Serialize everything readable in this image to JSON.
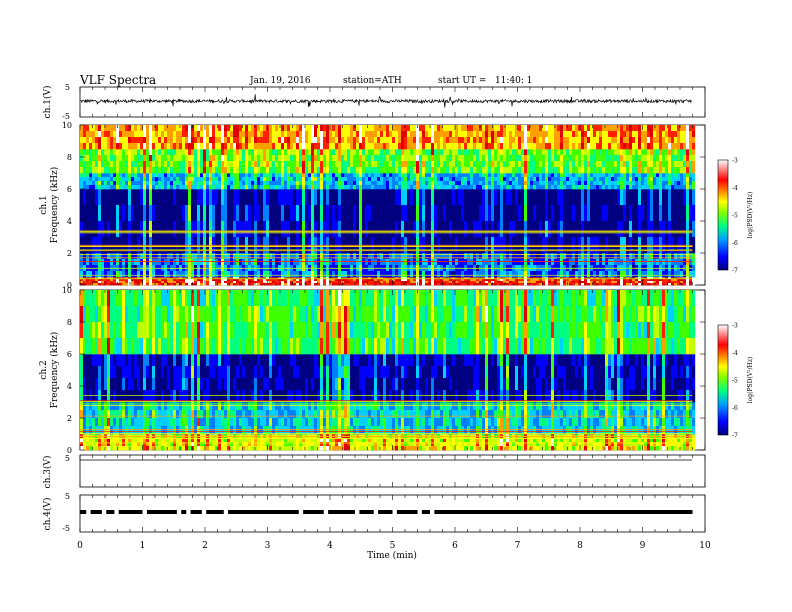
{
  "header": {
    "title": "VLF Spectra",
    "date": "Jan. 19, 2016",
    "station": "station=ATH",
    "start": "start UT =   11:40: 1"
  },
  "chart_data": [
    {
      "type": "line",
      "name": "ch1-waveform",
      "ylabel": "ch.1(V)",
      "ylim": [
        -5,
        5
      ],
      "yticks": [
        "5",
        "-5"
      ],
      "baseline": 0.3,
      "noise_amplitude": 0.5,
      "spikes": "frequent, up to ±2 V"
    },
    {
      "type": "heatmap",
      "name": "ch1-spectrogram",
      "ylabel": "ch.1\nFrequency (kHz)",
      "ylim": [
        0,
        10
      ],
      "yticks": [
        "0",
        "2",
        "4",
        "6",
        "8",
        "10"
      ],
      "xlim": [
        0,
        9.8
      ],
      "bands_khz": [
        {
          "from": 0,
          "to": 0.5,
          "log_psd": -3.5
        },
        {
          "from": 0.5,
          "to": 2,
          "log_psd": -6.2
        },
        {
          "from": 2,
          "to": 6,
          "log_psd": -6.9
        },
        {
          "from": 6,
          "to": 7,
          "log_psd": -5.9
        },
        {
          "from": 7,
          "to": 8.5,
          "log_psd": -5.0
        },
        {
          "from": 8.5,
          "to": 10,
          "log_psd": -4.0
        }
      ],
      "colorbar": {
        "label": "log(PSD(V²/Hz)",
        "range": [
          -7,
          -3
        ],
        "ticks": [
          "-3",
          "-4",
          "-5",
          "-6",
          "-7"
        ]
      }
    },
    {
      "type": "heatmap",
      "name": "ch2-spectrogram",
      "ylabel": "ch.2\nFrequency (kHz)",
      "ylim": [
        0,
        10
      ],
      "yticks": [
        "0",
        "2",
        "4",
        "6",
        "8",
        "10"
      ],
      "xlim": [
        0,
        9.8
      ],
      "bands_khz": [
        {
          "from": 0,
          "to": 1,
          "log_psd": -4.5
        },
        {
          "from": 1,
          "to": 3,
          "log_psd": -5.8
        },
        {
          "from": 3,
          "to": 6,
          "log_psd": -6.8
        },
        {
          "from": 6,
          "to": 10,
          "log_psd": -5.2
        }
      ],
      "colorbar": {
        "label": "log(PSD(V²/Hz)",
        "range": [
          -7,
          -3
        ],
        "ticks": [
          "-3",
          "-4",
          "-5",
          "-6",
          "-7"
        ]
      }
    },
    {
      "type": "line",
      "name": "ch3-waveform",
      "ylabel": "ch.3(V)",
      "ylim": [
        -5,
        5
      ],
      "yticks": [
        "5"
      ],
      "values": "flat at 5 V"
    },
    {
      "type": "line",
      "name": "ch4-waveform",
      "ylabel": "ch.4(V)",
      "ylim": [
        -5,
        5
      ],
      "yticks": [
        "5",
        "-5"
      ],
      "values": "near 0 V with dropouts",
      "gaps_min": [
        0.1,
        0.35,
        0.55,
        1.0,
        1.55,
        1.7,
        1.95,
        2.3,
        3.5,
        3.9,
        4.4,
        4.7,
        5.0,
        5.4,
        5.6
      ]
    }
  ],
  "xaxis": {
    "label": "Time (min)",
    "xlim": [
      0,
      10
    ],
    "ticks": [
      "0",
      "1",
      "2",
      "3",
      "4",
      "5",
      "6",
      "7",
      "8",
      "9",
      "10"
    ]
  },
  "colors": {
    "scale": [
      "#000080",
      "#0000ff",
      "#0080ff",
      "#00d0ff",
      "#00ff80",
      "#40ff00",
      "#c0ff00",
      "#ffff00",
      "#ffa000",
      "#ff2000",
      "#e00000",
      "#ffffff"
    ]
  }
}
